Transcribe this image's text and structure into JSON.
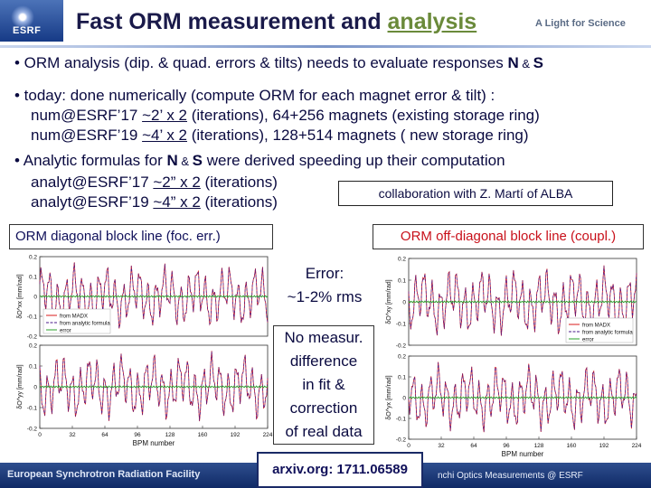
{
  "header": {
    "logo_text": "ESRF",
    "title_prefix": "Fast ORM measurement and ",
    "title_link": "analysis",
    "tagline": "A Light for Science"
  },
  "bullets": {
    "b1_prefix": "• ORM analysis (dip. & quad. errors & tilts) needs to evaluate responses ",
    "b1_n": "N",
    "b1_amp": " & ",
    "b1_s": "S",
    "b2": "• today: done numerically (compute ORM for each magnet error & tilt) :",
    "b2_line1_prefix": "num@ESRF’17 ",
    "b2_line1_u": "~2’ x 2",
    "b2_line1_suffix": " (iterations),   64+256 magnets (existing storage ring)",
    "b2_line2_prefix": "num@ESRF’19 ",
    "b2_line2_u": "~4’ x 2",
    "b2_line2_suffix": " (iterations), 128+514 magnets (     new storage ring)",
    "b3_prefix": "• Analytic formulas for ",
    "b3_n": "N",
    "b3_amp": " & ",
    "b3_s": "S",
    "b3_suffix": " were derived speeding up their computation",
    "b3_line1_prefix": "analyt@ESRF’17 ",
    "b3_line1_u": "~2” x 2",
    "b3_line1_suffix": " (iterations)",
    "b3_line2_prefix": "analyt@ESRF’19 ",
    "b3_line2_u": "~4” x 2",
    "b3_line2_suffix": " (iterations)"
  },
  "collab": "collaboration with Z. Martí of ALBA",
  "labels": {
    "diag": "ORM diagonal block line (foc. err.)",
    "offdiag": "ORM off-diagonal block line (coupl.)"
  },
  "error_note": {
    "line1": "Error:",
    "line2": "~1-2% rms"
  },
  "nomeasur": [
    "No measur.",
    "difference",
    "in fit &",
    "correction",
    "of real data"
  ],
  "arxiv": "arxiv.org: 1711.06589",
  "footer": {
    "left": "European Synchrotron Radiation Facility",
    "right": "nchi Optics Measurements  @ ESRF"
  },
  "colors": {
    "madx": "#d81b1b",
    "analytic": "#4a1a8a",
    "error": "#2aa02a"
  },
  "chart_data": [
    {
      "type": "line",
      "name": "left-top",
      "ylabel": "δO^xx [mm/rad]",
      "xlabel": "",
      "ylim": [
        -0.2,
        0.2
      ],
      "yticks": [
        "0.2",
        "0.1",
        "0",
        "-0.1",
        "-0.2"
      ],
      "xlim": [
        0,
        224
      ],
      "legend": [
        "from MADX",
        "from analytic formula",
        "error"
      ],
      "legend_placement": "bottom-left"
    },
    {
      "type": "line",
      "name": "left-bottom",
      "ylabel": "δO^yy [mm/rad]",
      "xlabel": "BPM number",
      "ylim": [
        -0.2,
        0.2
      ],
      "yticks": [
        "0.2",
        "0.1",
        "0",
        "-0.1",
        "-0.2"
      ],
      "xticks": [
        "0",
        "32",
        "64",
        "96",
        "128",
        "160",
        "192",
        "224"
      ],
      "xlim": [
        0,
        224
      ]
    },
    {
      "type": "line",
      "name": "right-top",
      "ylabel": "δO^xy [mm/rad]",
      "xlabel": "",
      "ylim": [
        -0.2,
        0.2
      ],
      "yticks": [
        "0.2",
        "0.1",
        "0",
        "-0.1",
        "-0.2"
      ],
      "xlim": [
        0,
        224
      ],
      "legend": [
        "from MADX",
        "from analytic formula",
        "error"
      ],
      "legend_placement": "bottom-right"
    },
    {
      "type": "line",
      "name": "right-bottom",
      "ylabel": "δO^yx [mm/rad]",
      "xlabel": "BPM number",
      "ylim": [
        -0.2,
        0.2
      ],
      "yticks": [
        "0.2",
        "0.1",
        "0",
        "-0.1",
        "-0.2"
      ],
      "xticks": [
        "0",
        "32",
        "64",
        "96",
        "128",
        "160",
        "192",
        "224"
      ],
      "xlim": [
        0,
        224
      ]
    }
  ]
}
